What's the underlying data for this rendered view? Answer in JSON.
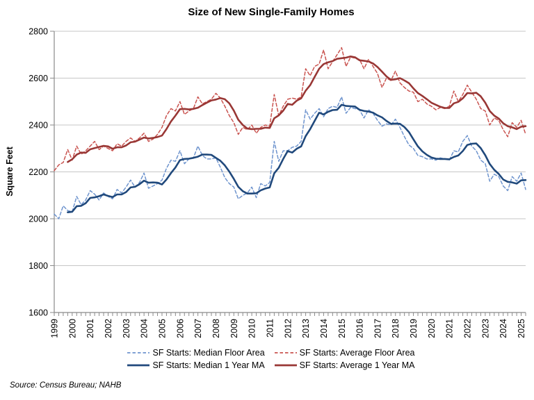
{
  "title": "Size of New Single-Family Homes",
  "source": "Source: Census Bureau; NAHB",
  "y_axis": {
    "label": "Square Feet",
    "min": 1600,
    "max": 2800,
    "step": 200,
    "ticks": [
      1600,
      1800,
      2000,
      2200,
      2400,
      2600,
      2800
    ]
  },
  "x_axis": {
    "year_labels": [
      1999,
      2000,
      2001,
      2002,
      2003,
      2004,
      2005,
      2006,
      2007,
      2008,
      2009,
      2010,
      2011,
      2012,
      2013,
      2014,
      2015,
      2016,
      2017,
      2018,
      2019,
      2020,
      2021,
      2022,
      2023,
      2024,
      2025
    ],
    "minor_tick": "quarterly"
  },
  "colors": {
    "median_quarterly": "#6E94CE",
    "average_quarterly": "#C9534F",
    "median_ma": "#20497C",
    "average_ma": "#993735",
    "gridline": "#C6C6C6",
    "axis": "#8A8A8A",
    "text": "#000000"
  },
  "legend": {
    "items": [
      {
        "label": "SF Starts: Median Floor Area",
        "style": "dashed",
        "color": "#6E94CE"
      },
      {
        "label": "SF Starts: Average Floor Area",
        "style": "dashed",
        "color": "#C9534F"
      },
      {
        "label": "SF Starts: Median 1 Year MA",
        "style": "solid",
        "color": "#20497C"
      },
      {
        "label": "SF Starts: Average 1 Year MA",
        "style": "solid",
        "color": "#993735"
      }
    ]
  },
  "chart_data": {
    "type": "line",
    "title": "Size of New Single-Family Homes",
    "xlabel": "",
    "ylabel": "Square Feet",
    "ylim": [
      1600,
      2800
    ],
    "xlim": [
      1999,
      2025.25
    ],
    "grid": "horizontal",
    "legend_position": "bottom",
    "frequency": "quarterly",
    "x_start": "1999Q1",
    "x_end": "2025Q2",
    "note": "1 Year MA series are trailing 4-quarter moving averages of the quarterly series, plotted from 1999Q4 onward",
    "series": [
      {
        "name": "SF Starts: Median Floor Area",
        "style": "dashed",
        "color": "#6E94CE",
        "values": [
          2020,
          2000,
          2055,
          2035,
          2030,
          2095,
          2060,
          2080,
          2120,
          2105,
          2080,
          2110,
          2095,
          2085,
          2125,
          2110,
          2135,
          2165,
          2135,
          2155,
          2195,
          2130,
          2140,
          2150,
          2165,
          2215,
          2250,
          2245,
          2290,
          2235,
          2255,
          2260,
          2310,
          2270,
          2255,
          2255,
          2260,
          2220,
          2175,
          2150,
          2135,
          2085,
          2100,
          2110,
          2135,
          2090,
          2150,
          2140,
          2155,
          2330,
          2245,
          2290,
          2290,
          2305,
          2310,
          2330,
          2465,
          2425,
          2450,
          2470,
          2435,
          2470,
          2480,
          2475,
          2520,
          2450,
          2475,
          2470,
          2465,
          2430,
          2465,
          2450,
          2420,
          2395,
          2405,
          2400,
          2425,
          2390,
          2350,
          2315,
          2300,
          2270,
          2265,
          2255,
          2255,
          2250,
          2260,
          2255,
          2250,
          2290,
          2285,
          2330,
          2355,
          2310,
          2290,
          2250,
          2235,
          2160,
          2190,
          2180,
          2140,
          2120,
          2180,
          2160,
          2195,
          2125
        ]
      },
      {
        "name": "SF Starts: Average Floor Area",
        "style": "dashed",
        "color": "#C9534F",
        "values": [
          2205,
          2230,
          2240,
          2295,
          2250,
          2310,
          2275,
          2290,
          2310,
          2330,
          2295,
          2310,
          2300,
          2290,
          2320,
          2310,
          2330,
          2345,
          2330,
          2345,
          2365,
          2330,
          2340,
          2360,
          2390,
          2440,
          2470,
          2460,
          2500,
          2445,
          2460,
          2470,
          2520,
          2490,
          2500,
          2510,
          2535,
          2515,
          2480,
          2440,
          2410,
          2360,
          2390,
          2380,
          2400,
          2365,
          2390,
          2400,
          2395,
          2530,
          2440,
          2480,
          2510,
          2515,
          2510,
          2520,
          2640,
          2610,
          2650,
          2660,
          2720,
          2640,
          2670,
          2700,
          2730,
          2650,
          2690,
          2685,
          2680,
          2640,
          2680,
          2650,
          2620,
          2560,
          2600,
          2590,
          2630,
          2580,
          2560,
          2545,
          2540,
          2500,
          2510,
          2490,
          2480,
          2465,
          2475,
          2470,
          2480,
          2545,
          2500,
          2530,
          2570,
          2540,
          2510,
          2470,
          2460,
          2400,
          2430,
          2420,
          2380,
          2350,
          2410,
          2390,
          2420,
          2360
        ]
      },
      {
        "name": "SF Starts: Median 1 Year MA",
        "style": "solid",
        "color": "#20497C",
        "derived_from": "SF Starts: Median Floor Area",
        "derivation": "trailing 4-quarter moving average"
      },
      {
        "name": "SF Starts: Average 1 Year MA",
        "style": "solid",
        "color": "#993735",
        "derived_from": "SF Starts: Average Floor Area",
        "derivation": "trailing 4-quarter moving average"
      }
    ]
  }
}
